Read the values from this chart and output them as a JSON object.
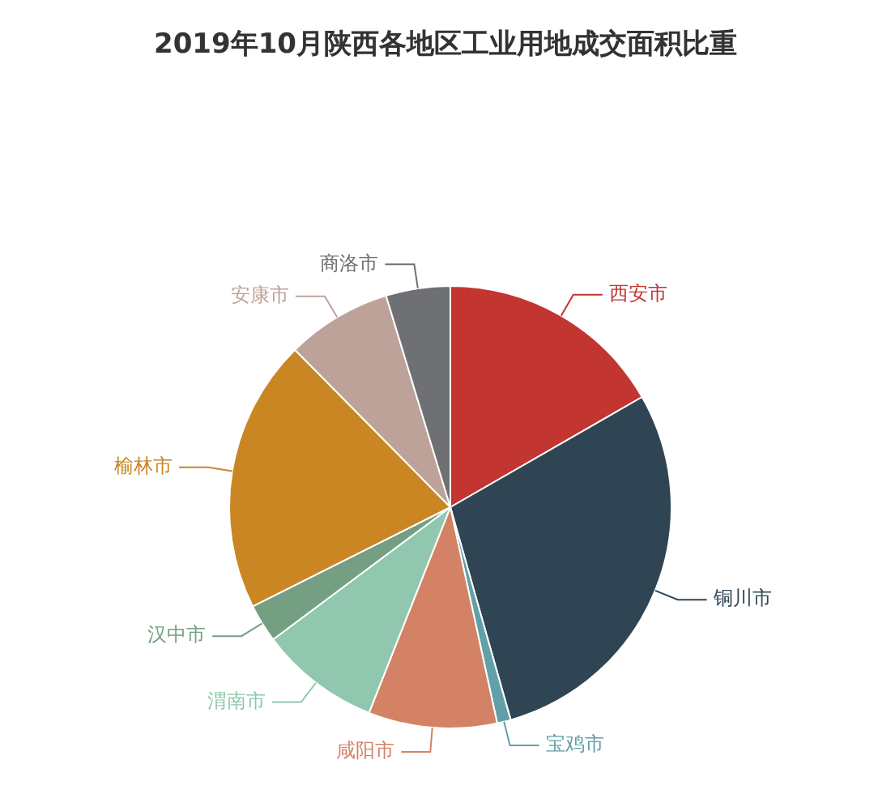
{
  "chart_data": {
    "type": "pie",
    "title": "2019年10月陕西各地区工业用地成交面积比重",
    "categories": [
      "西安市",
      "铜川市",
      "宝鸡市",
      "咸阳市",
      "渭南市",
      "汉中市",
      "榆林市",
      "安康市",
      "商洛市"
    ],
    "values": [
      16.7,
      28.9,
      1.0,
      9.4,
      8.8,
      2.8,
      20.0,
      7.7,
      4.7
    ],
    "colors": [
      "#c23531",
      "#2f4554",
      "#61a0a8",
      "#d48265",
      "#91c7ae",
      "#749f83",
      "#ca8622",
      "#bda29a",
      "#6e7074"
    ],
    "legend": false
  }
}
